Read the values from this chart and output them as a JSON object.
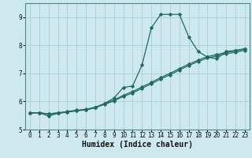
{
  "xlabel": "Humidex (Indice chaleur)",
  "bg_color": "#cde8ee",
  "grid_color": "#aacdd6",
  "line_color": "#1f6b5e",
  "spine_color": "#4a8a82",
  "xlim": [
    -0.5,
    23.5
  ],
  "ylim": [
    5.0,
    9.5
  ],
  "yticks": [
    5,
    6,
    7,
    8,
    9
  ],
  "xticks": [
    0,
    1,
    2,
    3,
    4,
    5,
    6,
    7,
    8,
    9,
    10,
    11,
    12,
    13,
    14,
    15,
    16,
    17,
    18,
    19,
    20,
    21,
    22,
    23
  ],
  "series1_x": [
    0,
    1,
    2,
    3,
    4,
    5,
    6,
    7,
    8,
    9,
    10,
    11,
    12,
    13,
    14,
    15,
    16,
    17,
    18,
    19,
    20,
    21,
    22,
    23
  ],
  "series1_y": [
    5.6,
    5.6,
    5.48,
    5.58,
    5.63,
    5.68,
    5.7,
    5.78,
    5.93,
    6.12,
    6.5,
    6.55,
    7.3,
    8.62,
    9.1,
    9.1,
    9.1,
    8.3,
    7.78,
    7.58,
    7.52,
    7.78,
    7.82,
    7.88
  ],
  "series2_x": [
    0,
    1,
    2,
    3,
    4,
    5,
    6,
    7,
    8,
    9,
    10,
    11,
    12,
    13,
    14,
    15,
    16,
    17,
    18,
    19,
    20,
    21,
    22,
    23
  ],
  "series2_y": [
    5.58,
    5.6,
    5.55,
    5.58,
    5.62,
    5.67,
    5.7,
    5.78,
    5.9,
    6.02,
    6.18,
    6.3,
    6.47,
    6.63,
    6.8,
    6.95,
    7.12,
    7.28,
    7.42,
    7.55,
    7.62,
    7.7,
    7.75,
    7.82
  ],
  "series3_x": [
    0,
    1,
    2,
    3,
    4,
    5,
    6,
    7,
    8,
    9,
    10,
    11,
    12,
    13,
    14,
    15,
    16,
    17,
    18,
    19,
    20,
    21,
    22,
    23
  ],
  "series3_y": [
    5.6,
    5.6,
    5.56,
    5.6,
    5.64,
    5.69,
    5.72,
    5.8,
    5.92,
    6.05,
    6.22,
    6.35,
    6.52,
    6.68,
    6.85,
    7.0,
    7.17,
    7.33,
    7.47,
    7.6,
    7.67,
    7.75,
    7.8,
    7.87
  ],
  "marker": "D",
  "marker_size": 1.8,
  "line_width": 0.9,
  "tick_fontsize": 5.5,
  "label_fontsize": 7.0
}
